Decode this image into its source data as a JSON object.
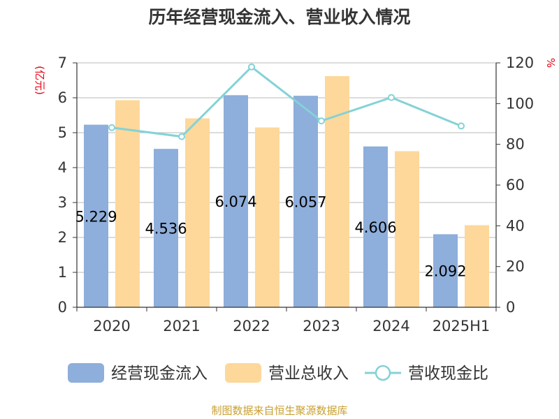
{
  "chart_data": {
    "type": "bar",
    "title": "历年经营现金流入、营业收入情况",
    "categories": [
      "2020",
      "2021",
      "2022",
      "2023",
      "2024",
      "2025H1"
    ],
    "left_axis": {
      "unit": "(亿元)",
      "ylim": [
        0,
        7
      ],
      "ticks": [
        0,
        1,
        2,
        3,
        4,
        5,
        6,
        7
      ]
    },
    "right_axis": {
      "unit": "%",
      "ylim": [
        0,
        120
      ],
      "ticks": [
        0,
        20,
        40,
        60,
        80,
        100,
        120
      ]
    },
    "series": [
      {
        "name": "经营现金流入",
        "type": "bar",
        "axis": "left",
        "color": "#8eaedb",
        "values": [
          5.229,
          4.536,
          6.074,
          6.057,
          4.606,
          2.092
        ],
        "labels": [
          "5.229",
          "4.536",
          "6.074",
          "6.057",
          "4.606",
          "2.092"
        ]
      },
      {
        "name": "营业总收入",
        "type": "bar",
        "axis": "left",
        "color": "#fdd89a",
        "values": [
          5.93,
          5.41,
          5.15,
          6.62,
          4.47,
          2.35
        ]
      },
      {
        "name": "营收现金比",
        "type": "line",
        "axis": "right",
        "color": "#84d2d6",
        "values": [
          88.2,
          83.8,
          118.0,
          91.5,
          103.0,
          89.0
        ]
      }
    ],
    "grid": true,
    "legend_position": "bottom"
  },
  "source": "制图数据来自恒生聚源数据库"
}
